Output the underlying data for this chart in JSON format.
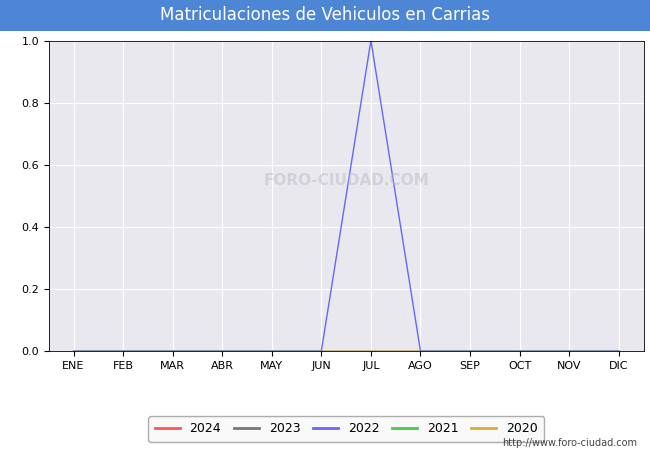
{
  "title": "Matriculaciones de Vehiculos en Carrias",
  "title_color": "#ffffff",
  "title_bg_color": "#4d86d4",
  "months": [
    "ENE",
    "FEB",
    "MAR",
    "ABR",
    "MAY",
    "JUN",
    "JUL",
    "AGO",
    "SEP",
    "OCT",
    "NOV",
    "DIC"
  ],
  "series": [
    {
      "year": "2024",
      "color": "#ff5555",
      "data": [
        0,
        0,
        0,
        0,
        0,
        0,
        0,
        0,
        0,
        0,
        0,
        0
      ]
    },
    {
      "year": "2023",
      "color": "#777777",
      "data": [
        0,
        0,
        0,
        0,
        0,
        0,
        0,
        0,
        0,
        0,
        0,
        0
      ]
    },
    {
      "year": "2022",
      "color": "#6666ff",
      "data": [
        0,
        0,
        0,
        0,
        0,
        0,
        1.0,
        0,
        0,
        0,
        0,
        0
      ]
    },
    {
      "year": "2021",
      "color": "#44cc44",
      "data": [
        0,
        0,
        0,
        0,
        0,
        0,
        0,
        0,
        0,
        0,
        0,
        0
      ]
    },
    {
      "year": "2020",
      "color": "#ddaa33",
      "data": [
        0,
        0,
        0,
        0,
        0,
        0,
        0,
        0,
        0,
        0,
        0,
        0
      ]
    }
  ],
  "ylim": [
    0.0,
    1.0
  ],
  "yticks": [
    0.0,
    0.2,
    0.4,
    0.6,
    0.8,
    1.0
  ],
  "fig_bg_color": "#ffffff",
  "plot_bg_color": "#e8e8ee",
  "grid_color": "#ffffff",
  "watermark_plot": "FORO-CIUDAD.COM",
  "watermark_url": "http://www.foro-ciudad.com",
  "watermark_color": "#bbbbcc",
  "legend_bg": "#f8f8f8",
  "legend_edge": "#999999",
  "tick_fontsize": 8,
  "legend_fontsize": 9,
  "title_fontsize": 12
}
